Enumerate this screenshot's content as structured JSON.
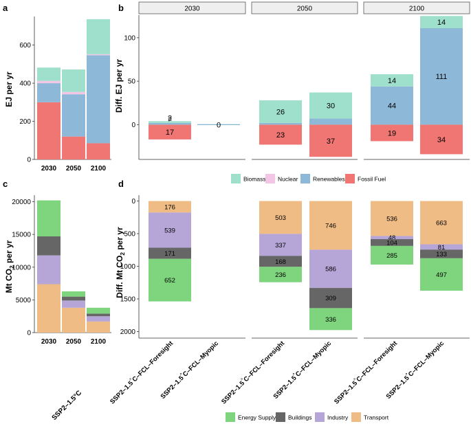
{
  "panel_labels": [
    "a",
    "b",
    "c",
    "d"
  ],
  "colors": {
    "Biomass": "#9fe0cc",
    "Nuclear": "#f4c6e6",
    "Renewables": "#8eb8d8",
    "Fossil Fuel": "#ef7672",
    "Energy Supply": "#7ed57d",
    "Buildings": "#666666",
    "Industry": "#b6a6d8",
    "Transport": "#efbc86",
    "strip_fill": "#efefef",
    "strip_border": "#555555",
    "zero_line": "#7fb6cf"
  },
  "chart_data": [
    {
      "id": "a",
      "type": "bar",
      "stacked": true,
      "ylabel": "EJ per yr",
      "categories": [
        "2030",
        "2050",
        "2100"
      ],
      "ylim": [
        0,
        750
      ],
      "yticks": [
        0,
        200,
        400,
        600
      ],
      "stack_order": [
        "Fossil Fuel",
        "Renewables",
        "Nuclear",
        "Biomass"
      ],
      "series": [
        {
          "name": "Fossil Fuel",
          "values": [
            300,
            120,
            85
          ]
        },
        {
          "name": "Renewables",
          "values": [
            100,
            222,
            462
          ]
        },
        {
          "name": "Nuclear",
          "values": [
            12,
            12,
            5
          ]
        },
        {
          "name": "Biomass",
          "values": [
            70,
            118,
            184
          ]
        }
      ]
    },
    {
      "id": "b",
      "type": "bar",
      "stacked": true,
      "ylabel": "Diff. EJ per yr",
      "facets": [
        "2030",
        "2050",
        "2100"
      ],
      "ylim": [
        -40,
        126
      ],
      "yticks": [
        0,
        50,
        100
      ],
      "negative_series": [
        "Fossil Fuel"
      ],
      "stack_order": [
        "Renewables",
        "Biomass"
      ],
      "bars": [
        {
          "facet": "2030",
          "values": {
            "Fossil Fuel": 17,
            "Renewables": 2,
            "Biomass": 2
          },
          "labels": {
            "Fossil Fuel": "17",
            "Renewables": "2",
            "Biomass": "2"
          }
        },
        {
          "facet": "2030",
          "values": {
            "Fossil Fuel": 0,
            "Renewables": 0,
            "Biomass": 0
          },
          "labels": {
            "zero": "0"
          }
        },
        {
          "facet": "2050",
          "values": {
            "Fossil Fuel": 23,
            "Renewables": 2,
            "Biomass": 26
          },
          "labels": {
            "Fossil Fuel": "23",
            "Renewables": "2",
            "Biomass": "26"
          }
        },
        {
          "facet": "2050",
          "values": {
            "Fossil Fuel": 37,
            "Renewables": 7,
            "Biomass": 30
          },
          "labels": {
            "Fossil Fuel": "37",
            "Renewables": "7",
            "Biomass": "30"
          }
        },
        {
          "facet": "2100",
          "values": {
            "Fossil Fuel": 19,
            "Renewables": 44,
            "Biomass": 14
          },
          "labels": {
            "Fossil Fuel": "19",
            "Renewables": "44",
            "Biomass": "14"
          }
        },
        {
          "facet": "2100",
          "values": {
            "Fossil Fuel": 34,
            "Renewables": 111,
            "Biomass": 14
          },
          "labels": {
            "Fossil Fuel": "34",
            "Renewables": "111",
            "Biomass": "14"
          }
        }
      ],
      "legend": [
        "Biomass",
        "Nuclear",
        "Renewables",
        "Fossil Fuel"
      ]
    },
    {
      "id": "c",
      "type": "bar",
      "stacked": true,
      "ylabel_pre": "Mt CO",
      "ylabel_sub": "2",
      "ylabel_post": " per yr",
      "categories": [
        "2030",
        "2050",
        "2100"
      ],
      "xlabel": "SSP2–1.5°C",
      "ylim": [
        0,
        21000
      ],
      "yticks": [
        0,
        5000,
        10000,
        15000,
        20000
      ],
      "stack_order": [
        "Transport",
        "Industry",
        "Buildings",
        "Energy Supply"
      ],
      "series": [
        {
          "name": "Transport",
          "values": [
            7400,
            3800,
            1700
          ]
        },
        {
          "name": "Industry",
          "values": [
            4400,
            1100,
            800
          ]
        },
        {
          "name": "Buildings",
          "values": [
            2900,
            600,
            400
          ]
        },
        {
          "name": "Energy Supply",
          "values": [
            5500,
            800,
            900
          ]
        }
      ]
    },
    {
      "id": "d",
      "type": "bar",
      "stacked": true,
      "ylabel_pre": "Diff. Mt CO",
      "ylabel_sub": "2",
      "ylabel_post": " per yr",
      "ylim": [
        2100,
        -90
      ],
      "yticks": [
        0,
        500,
        1000,
        1500,
        2000
      ],
      "stack_order": [
        "Transport",
        "Industry",
        "Buildings",
        "Energy Supply"
      ],
      "bars": [
        {
          "facet": "2030",
          "values": {
            "Transport": 176,
            "Industry": 539,
            "Buildings": 171,
            "Energy Supply": 652
          },
          "labels": {
            "Transport": "176",
            "Industry": "539",
            "Buildings": "171",
            "Energy Supply": "652"
          }
        },
        {
          "facet": "2030",
          "values": {
            "Transport": 0,
            "Industry": 0,
            "Buildings": 0,
            "Energy Supply": 0
          },
          "labels": {}
        },
        {
          "facet": "2050",
          "values": {
            "Transport": 503,
            "Industry": 337,
            "Buildings": 168,
            "Energy Supply": 236
          },
          "labels": {
            "Transport": "503",
            "Industry": "337",
            "Buildings": "168",
            "Energy Supply": "236"
          }
        },
        {
          "facet": "2050",
          "values": {
            "Transport": 746,
            "Industry": 586,
            "Buildings": 309,
            "Energy Supply": 336
          },
          "labels": {
            "Transport": "746",
            "Industry": "586",
            "Buildings": "309",
            "Energy Supply": "336"
          }
        },
        {
          "facet": "2100",
          "values": {
            "Transport": 536,
            "Industry": 48,
            "Buildings": 104,
            "Energy Supply": 285
          },
          "labels": {
            "Transport": "536",
            "Industry": "48",
            "Buildings": "104",
            "Energy Supply": "285"
          }
        },
        {
          "facet": "2100",
          "values": {
            "Transport": 663,
            "Industry": 81,
            "Buildings": 133,
            "Energy Supply": 497
          },
          "labels": {
            "Transport": "663",
            "Industry": "81",
            "Buildings": "133",
            "Energy Supply": "497"
          }
        }
      ],
      "x_tick_labels": [
        {
          "pre": "SSP2–1.5",
          "deg": "°",
          "post": "C–FCL–Foresight"
        },
        {
          "pre": "SSP2–1.5",
          "deg": "°",
          "post": "C–FCL–Myopic"
        },
        {
          "pre": "SSP2–1.5",
          "deg": "°",
          "post": "C–FCL–Foresight"
        },
        {
          "pre": "SSP2–1.5",
          "deg": "°",
          "post": "C–FCL–Myopic"
        },
        {
          "pre": "SSP2–1.5",
          "deg": "°",
          "post": "C–FCL–Foresight"
        },
        {
          "pre": "SSP2–1.5",
          "deg": "°",
          "post": "C–FCL–Myopic"
        }
      ],
      "legend": [
        "Energy Supply",
        "Buildings",
        "Industry",
        "Transport"
      ]
    }
  ]
}
